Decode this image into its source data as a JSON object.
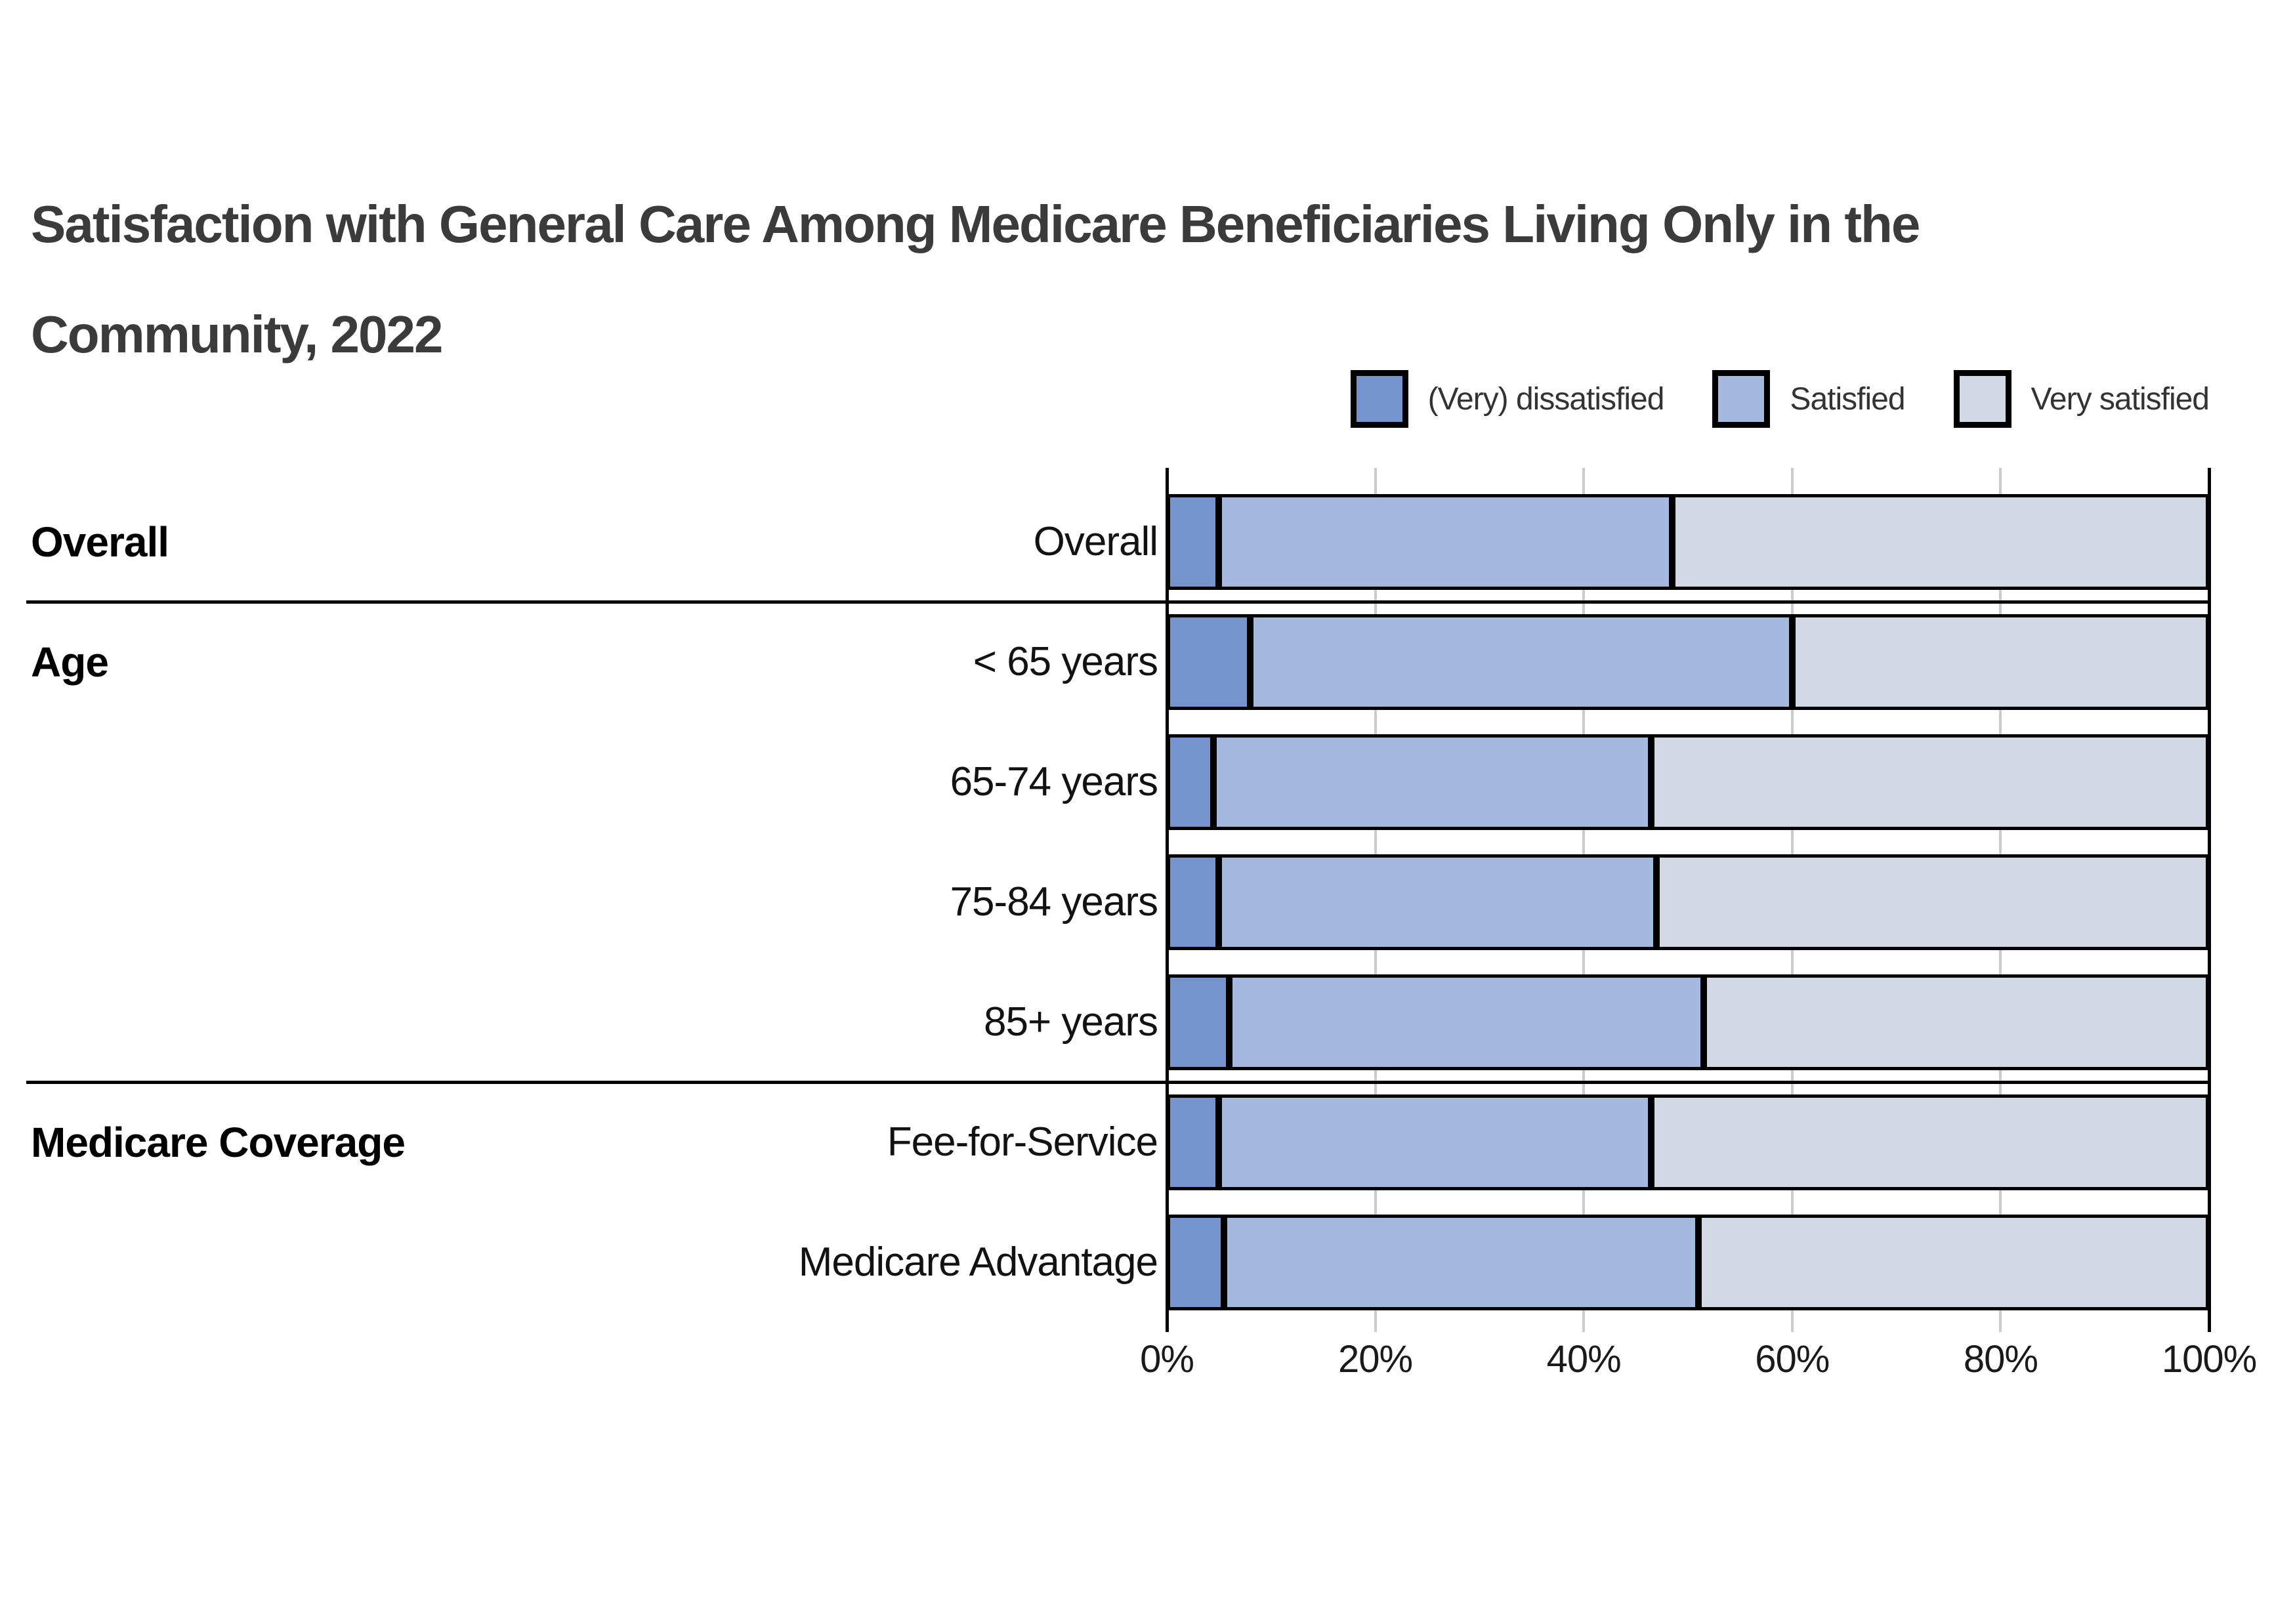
{
  "title": {
    "line1": "Satisfaction with General Care Among Medicare Beneficiaries Living Only in the",
    "line2": "Community, 2022"
  },
  "colors": {
    "dissatisfied": "#7594cd",
    "satisfied": "#a4b9dd",
    "very_satisfied": "#d3d9e4",
    "segment_border": "#000000",
    "gridline": "#cbcbcb",
    "axis_line": "#000000",
    "title_text": "#3b3b3b"
  },
  "chart_data": {
    "type": "bar",
    "orientation": "horizontal-stacked",
    "title": "Satisfaction with General Care Among Medicare Beneficiaries Living Only in the Community, 2022",
    "legend_position": "top-right",
    "grid": "vertical",
    "xlim": [
      0,
      100
    ],
    "x_ticks": [
      0,
      20,
      40,
      60,
      80,
      100
    ],
    "x_tick_labels": [
      "0%",
      "20%",
      "40%",
      "60%",
      "80%",
      "100%"
    ],
    "series_names": [
      "(Very) dissatisfied",
      "Satisfied",
      "Very satisfied"
    ],
    "series_colors": [
      "#7594cd",
      "#a4b9dd",
      "#d3d9e4"
    ],
    "groups": [
      {
        "label": "Overall",
        "first_row": 0
      },
      {
        "label": "Age",
        "first_row": 1
      },
      {
        "label": "Medicare Coverage",
        "first_row": 5
      }
    ],
    "separators_after_rows": [
      0,
      4
    ],
    "rows": [
      {
        "label": "Overall",
        "values": [
          5,
          43.5,
          51.5
        ]
      },
      {
        "label": "< 65 years",
        "values": [
          8,
          52,
          40
        ]
      },
      {
        "label": "65-74 years",
        "values": [
          4.5,
          42,
          53.5
        ]
      },
      {
        "label": "75-84 years",
        "values": [
          5,
          42,
          53
        ]
      },
      {
        "label": "85+ years",
        "values": [
          6,
          45.5,
          48.5
        ]
      },
      {
        "label": "Fee-for-Service",
        "values": [
          5,
          41.5,
          53.5
        ]
      },
      {
        "label": "Medicare Advantage",
        "values": [
          5.5,
          45.5,
          49
        ]
      }
    ]
  }
}
